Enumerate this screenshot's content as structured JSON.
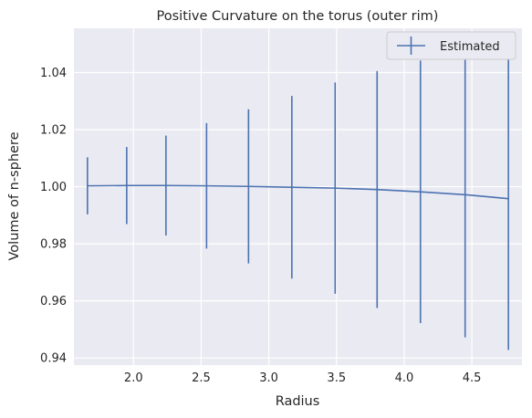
{
  "chart_data": {
    "type": "line",
    "title": "Positive Curvature on the torus (outer rim)",
    "xlabel": "Radius",
    "ylabel": "Volume of n-sphere",
    "xlim": [
      1.56,
      4.87
    ],
    "ylim": [
      0.9375,
      1.0555
    ],
    "xticks": [
      2.0,
      2.5,
      3.0,
      3.5,
      4.0,
      4.5
    ],
    "xtick_labels": [
      "2.0",
      "2.5",
      "3.0",
      "3.5",
      "4.0",
      "4.5"
    ],
    "yticks": [
      0.94,
      0.96,
      0.98,
      1.0,
      1.02,
      1.04
    ],
    "ytick_labels": [
      "0.94",
      "0.96",
      "0.98",
      "1.00",
      "1.02",
      "1.04"
    ],
    "grid": true,
    "legend_position": "top-right",
    "series": [
      {
        "name": "Estimated",
        "color": "#4c72b0",
        "x": [
          1.66,
          1.95,
          2.24,
          2.54,
          2.85,
          3.17,
          3.49,
          3.8,
          4.12,
          4.45,
          4.77
        ],
        "y": [
          1.0003,
          1.0004,
          1.0004,
          1.0003,
          1.0001,
          0.9998,
          0.9995,
          0.999,
          0.9982,
          0.9972,
          0.9958
        ],
        "yerr": [
          0.01,
          0.0135,
          0.0175,
          0.022,
          0.027,
          0.032,
          0.037,
          0.0415,
          0.046,
          0.05,
          0.053
        ]
      }
    ]
  },
  "colors": {
    "plot_background": "#eaeaf2",
    "grid": "#ffffff",
    "text": "#262626"
  }
}
